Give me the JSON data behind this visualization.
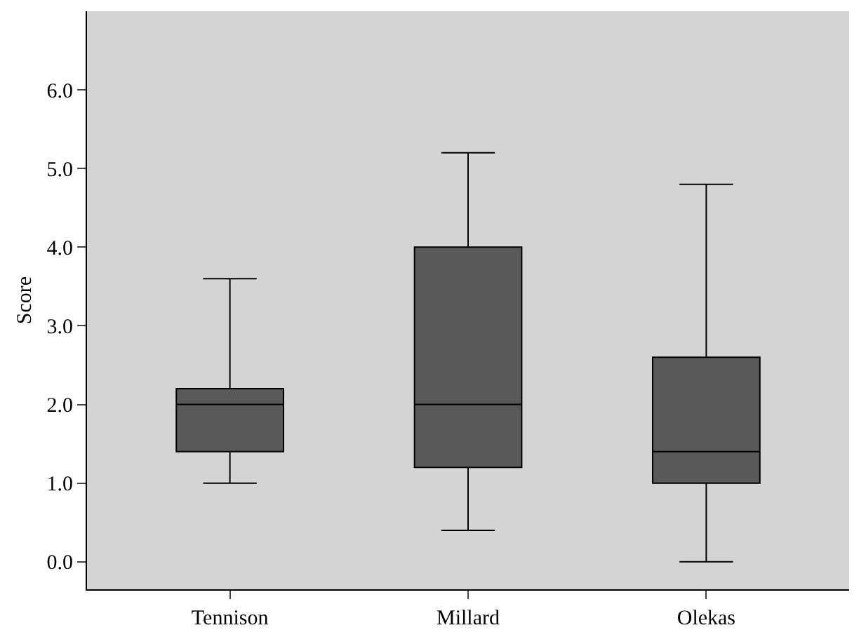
{
  "chart_data": {
    "type": "box",
    "ylabel": "Score",
    "categories": [
      "Tennison",
      "Millard",
      "Olekas"
    ],
    "boxes": [
      {
        "low": 1.0,
        "q1": 1.4,
        "median": 2.0,
        "q3": 2.2,
        "high": 3.6
      },
      {
        "low": 0.4,
        "q1": 1.2,
        "median": 2.0,
        "q3": 4.0,
        "high": 5.2
      },
      {
        "low": 0.0,
        "q1": 1.0,
        "median": 1.4,
        "q3": 2.6,
        "high": 4.8
      }
    ],
    "color": "#595959",
    "ylim": [
      -0.35,
      7.0
    ],
    "yticks": [
      {
        "value": 0,
        "label": "0.0"
      },
      {
        "value": 1,
        "label": "1.0"
      },
      {
        "value": 2,
        "label": "2.0"
      },
      {
        "value": 3,
        "label": "3.0"
      },
      {
        "value": 4,
        "label": "4.0"
      },
      {
        "value": 5,
        "label": "5.0"
      },
      {
        "value": 6,
        "label": "6.0"
      }
    ],
    "grid": false
  }
}
